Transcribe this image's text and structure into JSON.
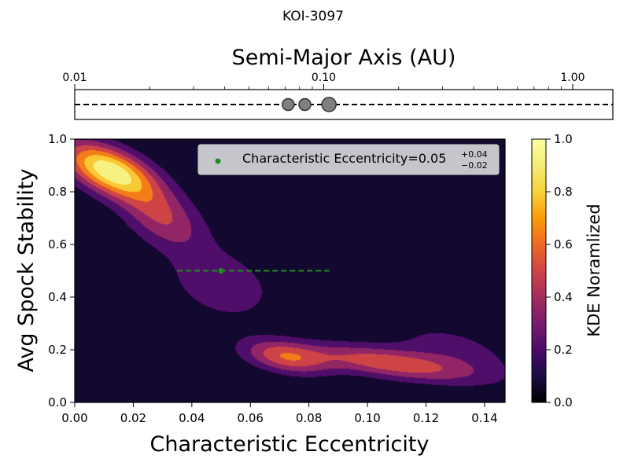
{
  "figure": {
    "title": "KOI-3097"
  },
  "chart_data": [
    {
      "panel": "top",
      "type": "scatter",
      "xlabel": "Semi-Major Axis (AU)",
      "xscale": "log",
      "xlim": [
        0.01,
        1.45
      ],
      "xticks": [
        0.01,
        0.1,
        1.0
      ],
      "xtick_labels": [
        "0.01",
        "0.10",
        "1.00"
      ],
      "dashed_line": true,
      "planets": [
        {
          "a": 0.072,
          "size": "medium"
        },
        {
          "a": 0.084,
          "size": "medium"
        },
        {
          "a": 0.105,
          "size": "large"
        }
      ],
      "planet_color": "#808080"
    },
    {
      "panel": "main",
      "type": "heatmap",
      "xlabel": "Characteristic Eccentricity",
      "ylabel": "Avg Spock Stability",
      "xlim": [
        0,
        0.147
      ],
      "ylim": [
        0,
        1
      ],
      "xticks": [
        0.0,
        0.02,
        0.04,
        0.06,
        0.08,
        0.1,
        0.12,
        0.14
      ],
      "xtick_labels": [
        "0.00",
        "0.02",
        "0.04",
        "0.06",
        "0.08",
        "0.10",
        "0.12",
        "0.14"
      ],
      "yticks": [
        0.0,
        0.2,
        0.4,
        0.6,
        0.8,
        1.0
      ],
      "ytick_labels": [
        "0.0",
        "0.2",
        "0.4",
        "0.6",
        "0.8",
        "1.0"
      ],
      "colormap": "inferno",
      "kde_peaks": [
        {
          "x": 0.012,
          "y": 0.88,
          "height": 1.0
        },
        {
          "x": 0.072,
          "y": 0.17,
          "height": 0.58
        },
        {
          "x": 0.105,
          "y": 0.15,
          "height": 0.6
        }
      ],
      "point": {
        "x": 0.05,
        "y": 0.5,
        "xerr_minus": 0.015,
        "xerr_plus": 0.037,
        "color": "#228b22"
      },
      "legend": {
        "placement": "top-right",
        "label": "Characteristic Eccentricity=0.05",
        "sup": "+0.04",
        "sub": "−0.02"
      },
      "colorbar": {
        "label": "KDE Noramlized",
        "ticks": [
          0.0,
          0.2,
          0.4,
          0.6,
          0.8,
          1.0
        ],
        "tick_labels": [
          "0.0",
          "0.2",
          "0.4",
          "0.6",
          "0.8",
          "1.0"
        ],
        "range": [
          0,
          1
        ]
      }
    }
  ]
}
